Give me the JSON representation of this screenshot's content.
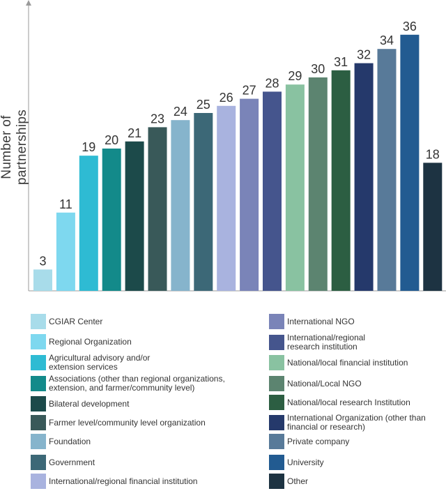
{
  "chart_data": {
    "type": "bar",
    "ylabel": "Number of partnerships",
    "categories": [
      "CGIAR Center",
      "Regional Organization",
      "Agricultural advisory and/or\nextension services",
      "Associations (other than regional organizations,\nextension, and farmer/community level)",
      "Bilateral development",
      "Farmer level/community level organization",
      "Foundation",
      "Government",
      "International/regional financial institution",
      "International NGO",
      "International/regional\nresearch institution",
      "National/local financial institution",
      "National/Local NGO",
      "National/local research Institution",
      "International Organization (other than\nfinancial or research)",
      "Private company",
      "University",
      "Other"
    ],
    "values": [
      3,
      11,
      19,
      20,
      21,
      23,
      24,
      25,
      26,
      27,
      28,
      29,
      30,
      31,
      32,
      34,
      36,
      18
    ],
    "colors": [
      "#a8dcea",
      "#7ed8ef",
      "#2ebbd3",
      "#138a8a",
      "#1c4a4a",
      "#395959",
      "#86b4cc",
      "#3c6877",
      "#a9b3df",
      "#7a84b8",
      "#45558d",
      "#89c2a1",
      "#5c8470",
      "#2c5e42",
      "#25396b",
      "#587a99",
      "#225b91",
      "#1d3342"
    ],
    "ylim": [
      0,
      40
    ],
    "grid": false,
    "legend": "bottom"
  }
}
